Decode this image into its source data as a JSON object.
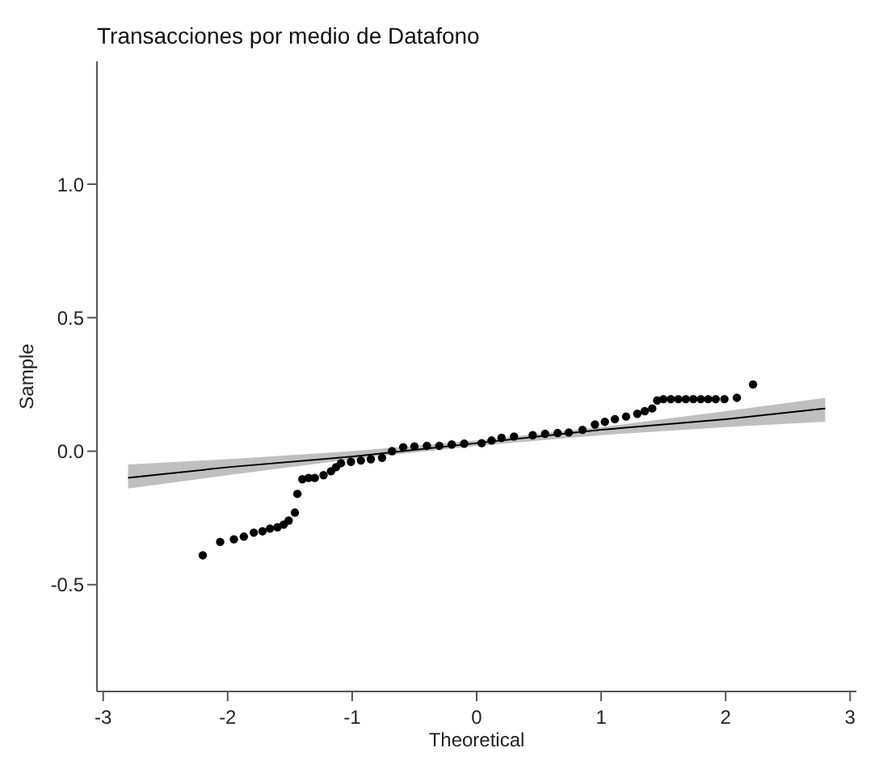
{
  "chart_data": {
    "type": "scatter",
    "title": "Transacciones por medio de Datafono",
    "xlabel": "Theoretical",
    "ylabel": "Sample",
    "xlim": [
      -3.05,
      3.05
    ],
    "ylim": [
      -0.9,
      1.46
    ],
    "xticks": [
      -3,
      -2,
      -1,
      0,
      1,
      2,
      3
    ],
    "yticks": [
      {
        "value": -0.5,
        "label": "-0.5"
      },
      {
        "value": 0,
        "label": "0.0"
      },
      {
        "value": 0.5,
        "label": "0.5"
      },
      {
        "value": 1,
        "label": "1.0"
      }
    ],
    "grid": false,
    "legend": false,
    "series": [
      {
        "type": "scatter",
        "color": "#000000",
        "marker": "circle",
        "x": [
          -2.2,
          -2.06,
          -1.95,
          -1.87,
          -1.79,
          -1.72,
          -1.66,
          -1.6,
          -1.55,
          -1.51,
          -1.46,
          -1.44,
          -1.4,
          -1.35,
          -1.3,
          -1.23,
          -1.17,
          -1.13,
          -1.09,
          -1.01,
          -0.93,
          -0.85,
          -0.76,
          -0.68,
          -0.59,
          -0.5,
          -0.4,
          -0.3,
          -0.2,
          -0.1,
          0.04,
          0.12,
          0.2,
          0.3,
          0.45,
          0.55,
          0.65,
          0.74,
          0.85,
          0.95,
          1.03,
          1.11,
          1.2,
          1.29,
          1.35,
          1.41,
          1.45,
          1.5,
          1.56,
          1.62,
          1.68,
          1.74,
          1.8,
          1.86,
          1.92,
          1.99,
          2.09,
          2.22
        ],
        "values": [
          -0.39,
          -0.34,
          -0.33,
          -0.32,
          -0.305,
          -0.3,
          -0.29,
          -0.285,
          -0.275,
          -0.26,
          -0.23,
          -0.16,
          -0.105,
          -0.1,
          -0.1,
          -0.09,
          -0.075,
          -0.06,
          -0.045,
          -0.04,
          -0.035,
          -0.03,
          -0.025,
          0.0,
          0.015,
          0.018,
          0.02,
          0.02,
          0.025,
          0.028,
          0.03,
          0.04,
          0.05,
          0.055,
          0.06,
          0.065,
          0.068,
          0.07,
          0.08,
          0.1,
          0.11,
          0.12,
          0.13,
          0.14,
          0.15,
          0.16,
          0.19,
          0.195,
          0.195,
          0.195,
          0.195,
          0.195,
          0.195,
          0.195,
          0.195,
          0.195,
          0.2,
          0.25
        ]
      },
      {
        "type": "line",
        "color": "#000000",
        "marker": "none",
        "x": [
          -2.8,
          -2,
          -1,
          0,
          1,
          2,
          2.8
        ],
        "values": [
          -0.1,
          -0.06,
          -0.02,
          0.03,
          0.08,
          0.12,
          0.16
        ],
        "lower": [
          -0.14,
          -0.09,
          -0.03,
          0.02,
          0.06,
          0.09,
          0.11
        ],
        "upper": [
          -0.05,
          -0.03,
          0.0,
          0.04,
          0.09,
          0.15,
          0.2
        ]
      }
    ]
  }
}
